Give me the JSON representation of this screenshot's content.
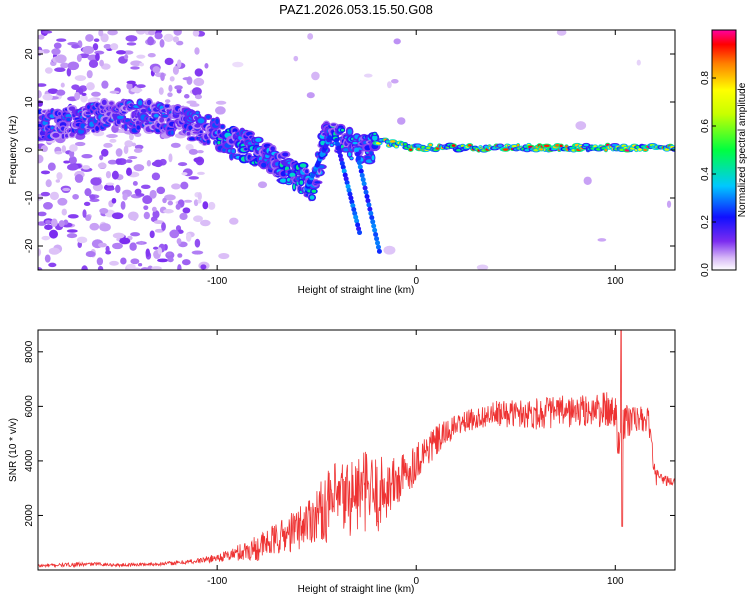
{
  "chart_data": [
    {
      "type": "heatmap",
      "title": "PAZ1.2026.053.15.50.G08",
      "xlabel": "Height of straight line (km)",
      "ylabel": "Frequency (Hz)",
      "xlim": [
        -190,
        130
      ],
      "ylim": [
        -25,
        25
      ],
      "x_ticks": [
        -100,
        0,
        100
      ],
      "y_ticks": [
        20,
        10,
        0,
        -10,
        -20
      ],
      "y_tick_labels": [
        "20",
        "10",
        "0",
        "-10",
        "-20"
      ],
      "colorbar": {
        "label": "Normalized spectral amplitude",
        "range": [
          0,
          1
        ],
        "ticks": [
          0.0,
          0.2,
          0.4,
          0.6,
          0.8
        ],
        "tick_labels": [
          "0.0",
          "0.2",
          "0.4",
          "0.6",
          "0.8"
        ]
      },
      "ridge": [
        {
          "x": -190,
          "f": 5
        },
        {
          "x": -175,
          "f": 6
        },
        {
          "x": -160,
          "f": 7
        },
        {
          "x": -145,
          "f": 7
        },
        {
          "x": -130,
          "f": 7
        },
        {
          "x": -120,
          "f": 6
        },
        {
          "x": -110,
          "f": 5
        },
        {
          "x": -100,
          "f": 3
        },
        {
          "x": -90,
          "f": 1
        },
        {
          "x": -80,
          "f": 0
        },
        {
          "x": -70,
          "f": -3
        },
        {
          "x": -60,
          "f": -5
        },
        {
          "x": -52,
          "f": -8
        },
        {
          "x": -45,
          "f": 4
        },
        {
          "x": -38,
          "f": 2
        },
        {
          "x": -30,
          "f": 0
        },
        {
          "x": -25,
          "f": 0
        },
        {
          "x": -20,
          "f": 2
        },
        {
          "x": -10,
          "f": 1
        },
        {
          "x": 0,
          "f": 0.5
        },
        {
          "x": 130,
          "f": 0.5
        }
      ]
    },
    {
      "type": "line",
      "xlabel": "Height of straight line (km)",
      "ylabel": "SNR (10 * v/v)",
      "xlim": [
        -190,
        130
      ],
      "ylim": [
        0,
        8800
      ],
      "x_ticks": [
        -100,
        0,
        100
      ],
      "y_ticks": [
        2000,
        4000,
        6000,
        8000
      ],
      "series": [
        {
          "name": "SNR",
          "color": "#ee3333",
          "x": [
            -190,
            -180,
            -170,
            -160,
            -150,
            -140,
            -130,
            -120,
            -110,
            -100,
            -95,
            -90,
            -85,
            -80,
            -75,
            -70,
            -65,
            -60,
            -55,
            -50,
            -45,
            -40,
            -35,
            -30,
            -25,
            -20,
            -15,
            -10,
            -5,
            0,
            5,
            10,
            15,
            20,
            25,
            30,
            35,
            40,
            50,
            60,
            70,
            80,
            90,
            95,
            100,
            103,
            105,
            110,
            115,
            117,
            120,
            125,
            130
          ],
          "values": [
            150,
            180,
            200,
            220,
            180,
            200,
            220,
            260,
            330,
            450,
            520,
            620,
            720,
            820,
            950,
            1150,
            1300,
            1500,
            1800,
            2050,
            2300,
            2500,
            2650,
            2800,
            2900,
            2700,
            3000,
            3200,
            3500,
            4000,
            4400,
            4700,
            5000,
            5300,
            5450,
            5550,
            5650,
            5700,
            5750,
            5750,
            5800,
            5800,
            5850,
            5850,
            5800,
            4500,
            5500,
            5500,
            5500,
            5400,
            3400,
            3300,
            3200
          ],
          "noise": [
            60,
            60,
            80,
            60,
            60,
            60,
            60,
            80,
            100,
            150,
            200,
            300,
            400,
            500,
            550,
            600,
            700,
            800,
            900,
            1000,
            1300,
            1500,
            1500,
            1500,
            1500,
            1500,
            1200,
            1000,
            900,
            700,
            700,
            600,
            500,
            400,
            400,
            400,
            400,
            500,
            500,
            600,
            600,
            600,
            600,
            700,
            700,
            1500,
            800,
            500,
            500,
            500,
            300,
            200,
            150
          ],
          "peak": {
            "x": 103,
            "value": 8800
          }
        }
      ]
    }
  ]
}
